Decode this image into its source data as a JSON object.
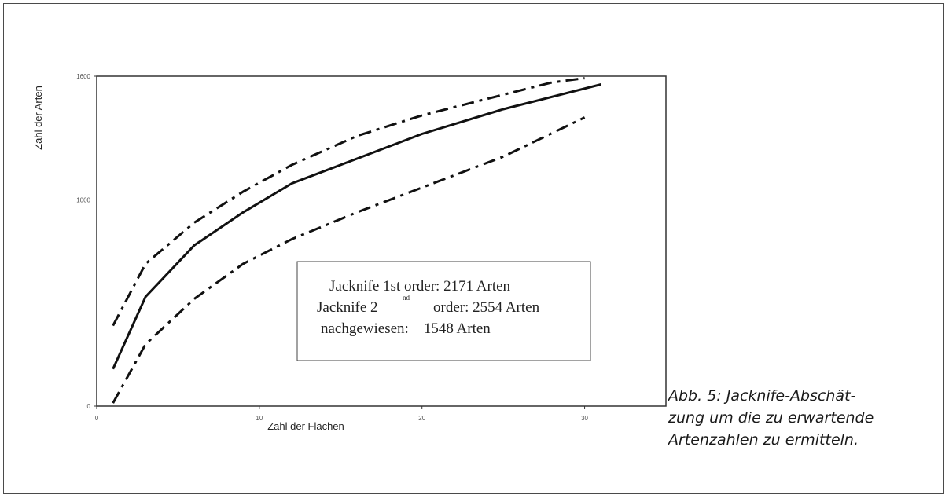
{
  "chart_data": {
    "type": "line",
    "xlabel": "Zahl der Flächen",
    "ylabel": "Zahl der Arten",
    "xlim": [
      0,
      35
    ],
    "ylim": [
      0,
      1600
    ],
    "x_ticks": [
      0,
      10,
      20,
      30
    ],
    "y_ticks": [
      0,
      1000,
      1600
    ],
    "grid": false,
    "series": [
      {
        "style": "solid",
        "x": [
          1,
          3,
          6,
          9,
          12,
          16,
          20,
          25,
          31
        ],
        "y": [
          180,
          530,
          780,
          940,
          1080,
          1200,
          1320,
          1440,
          1560
        ]
      },
      {
        "style": "dash-dot",
        "x": [
          1,
          3,
          6,
          9,
          12,
          16,
          20,
          25,
          28,
          30
        ],
        "y": [
          390,
          690,
          890,
          1040,
          1170,
          1310,
          1410,
          1510,
          1570,
          1590
        ]
      },
      {
        "style": "dash-dot",
        "x": [
          1,
          3,
          6,
          9,
          12,
          16,
          20,
          25,
          30
        ],
        "y": [
          15,
          300,
          520,
          690,
          810,
          940,
          1060,
          1210,
          1400
        ]
      }
    ],
    "annotation": {
      "lines": [
        "Jacknife 1st order: 2171 Arten",
        "Jacknife 2",
        "nd",
        "order: 2554 Arten",
        "nachgewiesen:    1548 Arten"
      ]
    }
  },
  "caption": {
    "lines": [
      "Abb. 5: Jacknife-Abschät-",
      "zung um die zu erwartende",
      "Artenzahlen zu ermitteln."
    ]
  }
}
